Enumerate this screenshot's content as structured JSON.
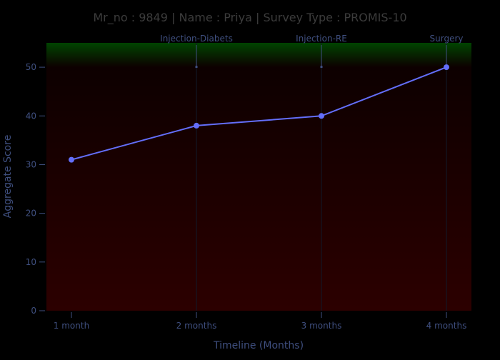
{
  "chart_data": {
    "type": "line",
    "title": "Mr_no : 9849 | Name : Priya | Survey Type : PROMIS-10",
    "xlabel": "Timeline (Months)",
    "ylabel": "Aggregate Score",
    "categories": [
      "1 month",
      "2 months",
      "3 months",
      "4 months"
    ],
    "series": [
      {
        "values": [
          31,
          38,
          40,
          50
        ]
      }
    ],
    "ylim": [
      0,
      55
    ],
    "yticks": [
      0,
      10,
      20,
      30,
      40,
      50
    ],
    "grid": false,
    "annotations": [
      {
        "label": "Injection-Diabets",
        "x": "2 months"
      },
      {
        "label": "Injection-RE",
        "x": "3 months"
      },
      {
        "label": "Surgery",
        "x": "4 months"
      }
    ],
    "background_bands": {
      "top_color": "#004400",
      "mid_color": "#0d0000",
      "bottom_color": "#2c0000",
      "green_band_from": 50
    },
    "colors": {
      "line": "#636efa",
      "marker": "#636efa",
      "text": "#3f4f7f",
      "title": "#3c3c3c"
    }
  }
}
